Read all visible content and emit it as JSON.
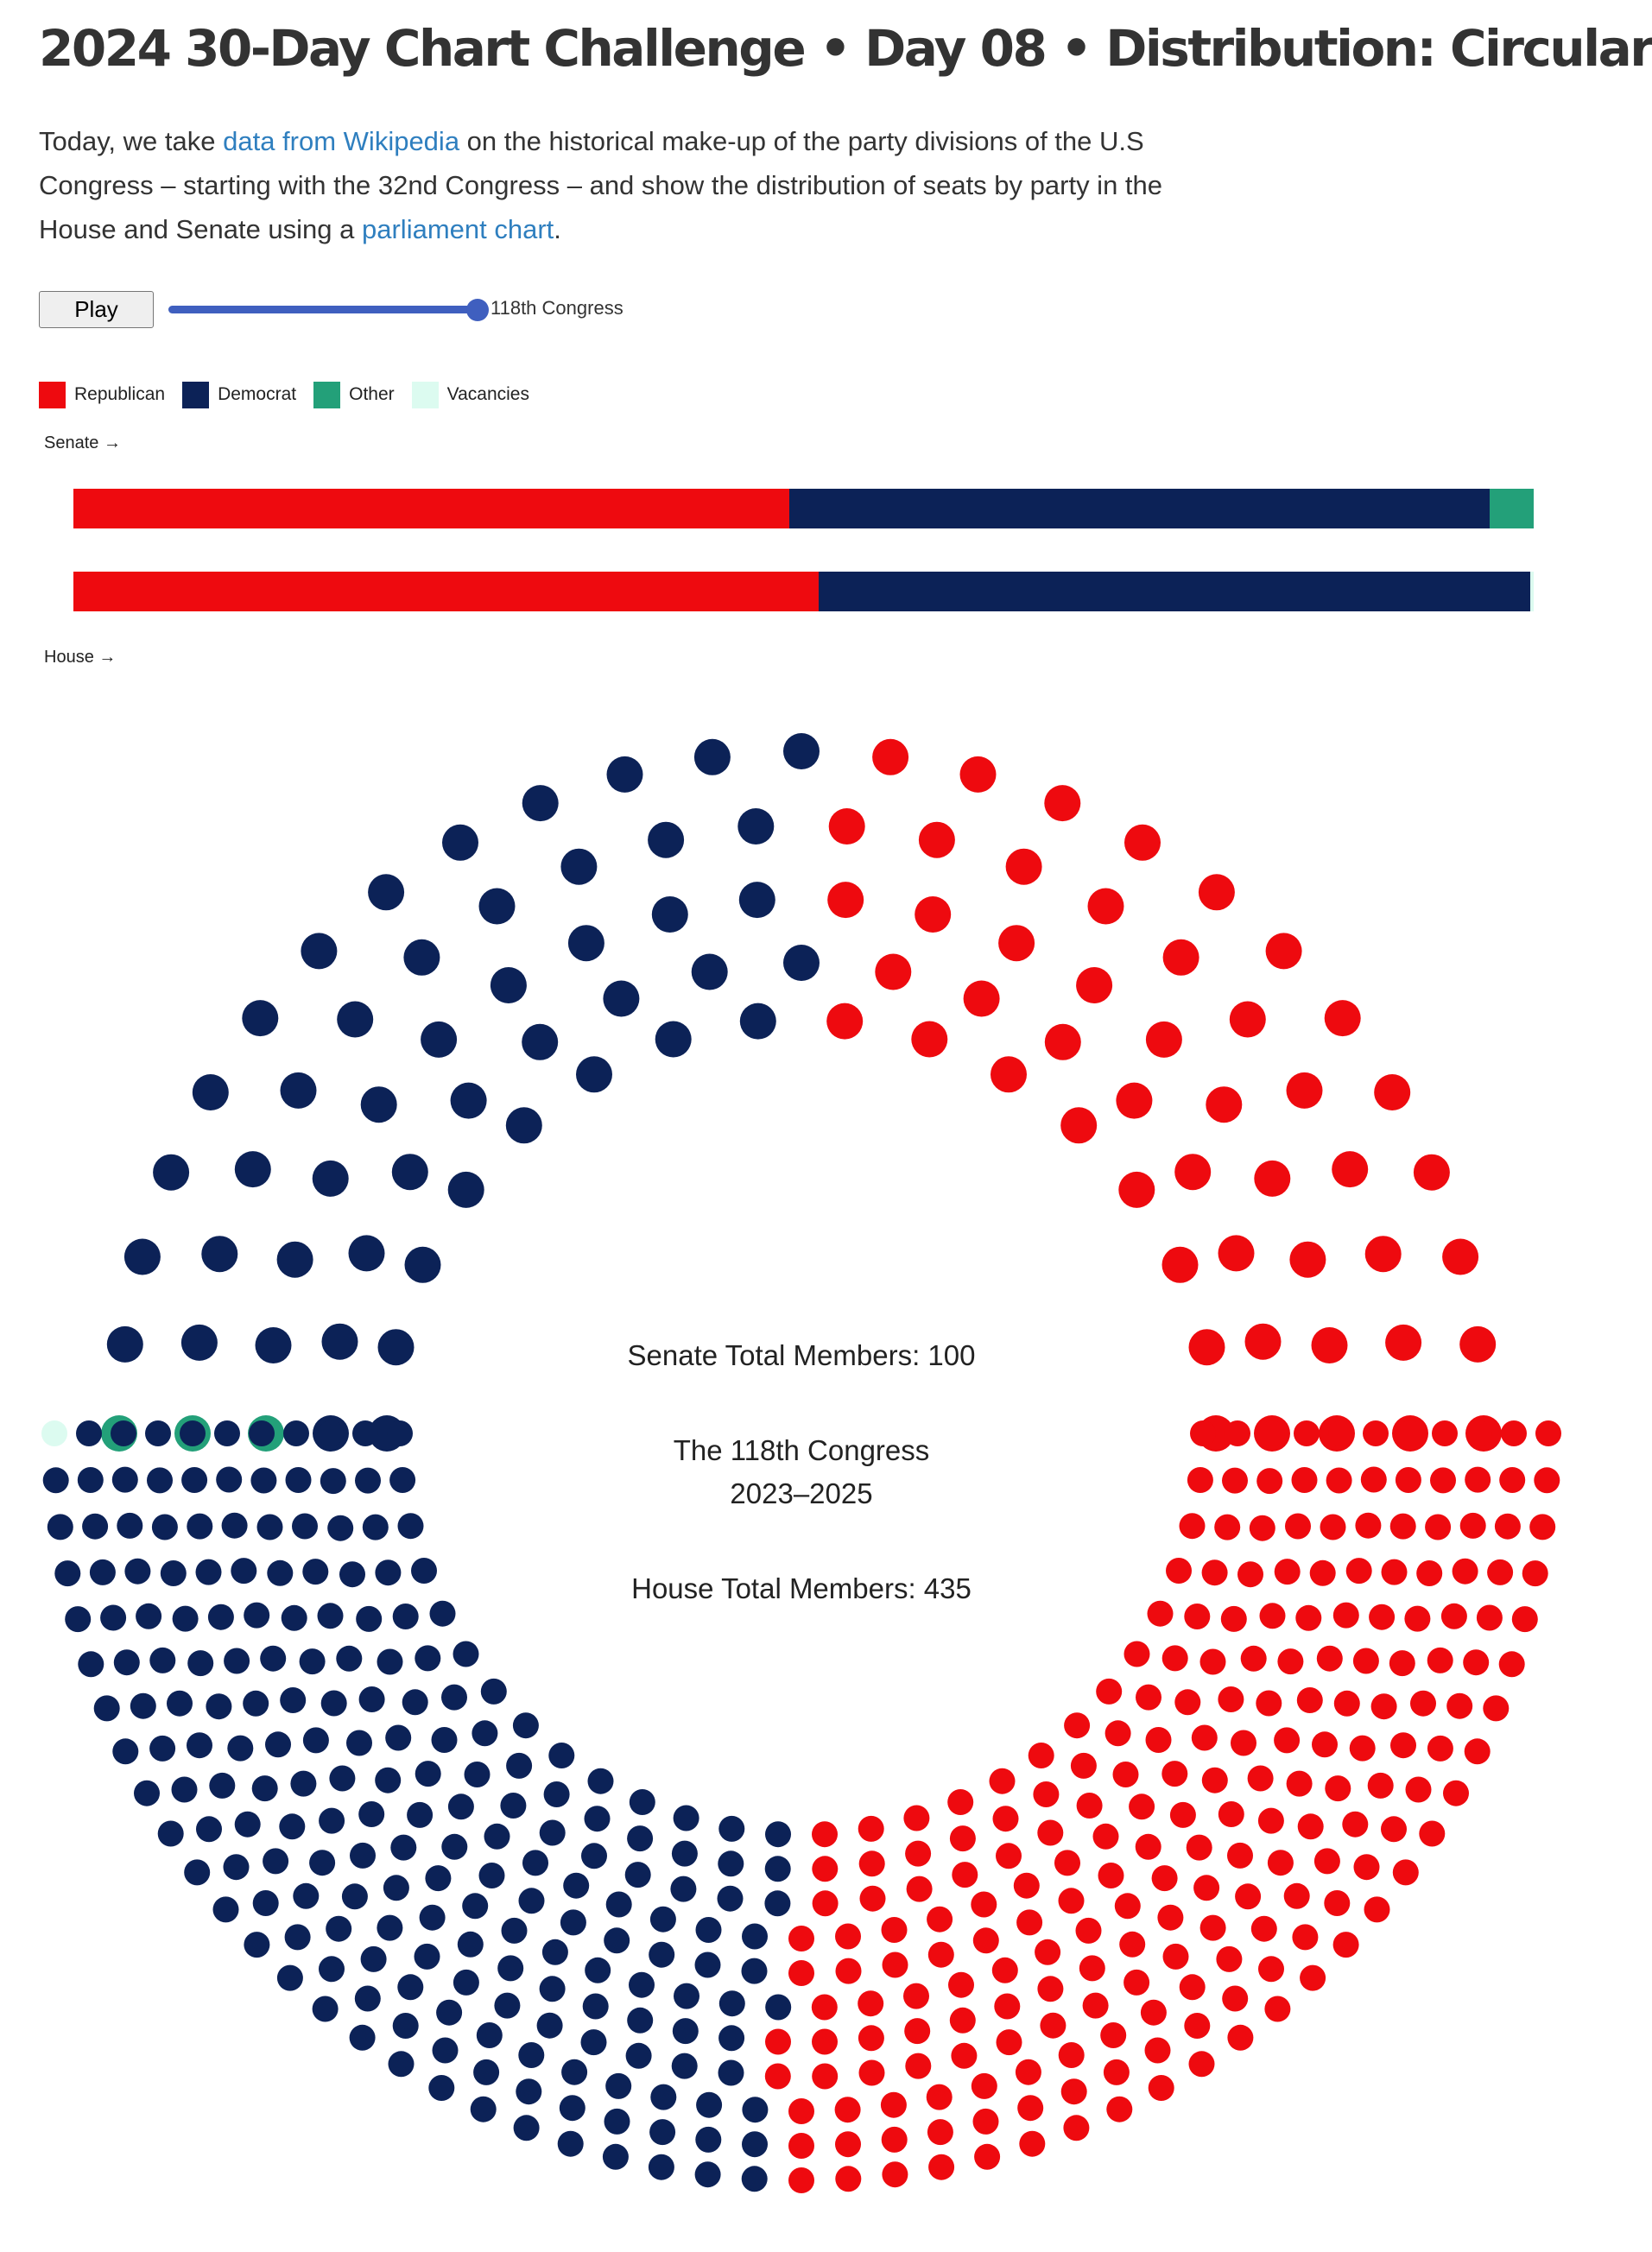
{
  "title": "2024 30-Day Chart Challenge • Day 08 • Distribution: Circular",
  "description": {
    "p1": "Today, we take ",
    "link1": "data from Wikipedia",
    "p2": " on the historical make-up of the party divisions of the U.S Congress – starting with the 32nd Congress – and show the distribution of seats by party in the House and Senate using a ",
    "link2": "parliament chart",
    "p3": "."
  },
  "controls": {
    "play_label": "Play",
    "slider_value": 1.0,
    "congress_label": "118th Congress"
  },
  "colors": {
    "republican": "#ee0a0f",
    "democrat": "#0c2257",
    "other": "#23a079",
    "vacancies": "#dcfbf0"
  },
  "legend": [
    {
      "label": "Republican",
      "color": "#ee0a0f"
    },
    {
      "label": "Democrat",
      "color": "#0c2257"
    },
    {
      "label": "Other",
      "color": "#23a079"
    },
    {
      "label": "Vacancies",
      "color": "#dcfbf0"
    }
  ],
  "labels": {
    "senate_arrow": "Senate →",
    "house_arrow": "House →"
  },
  "center": {
    "senate_total": "Senate Total Members: 100",
    "congress_line1": "The 118th Congress",
    "congress_line2": "2023–2025",
    "house_total": "House Total Members: 435"
  },
  "chart_data": [
    {
      "type": "bar",
      "chamber": "Senate",
      "orientation": "horizontal",
      "stacked": true,
      "categories": [
        "Republican",
        "Democrat",
        "Other",
        "Vacancies"
      ],
      "values": [
        49,
        48,
        3,
        0
      ],
      "total": 100
    },
    {
      "type": "bar",
      "chamber": "House",
      "orientation": "horizontal",
      "stacked": true,
      "categories": [
        "Republican",
        "Democrat",
        "Other",
        "Vacancies"
      ],
      "values": [
        222,
        212,
        0,
        1
      ],
      "total": 435
    }
  ]
}
